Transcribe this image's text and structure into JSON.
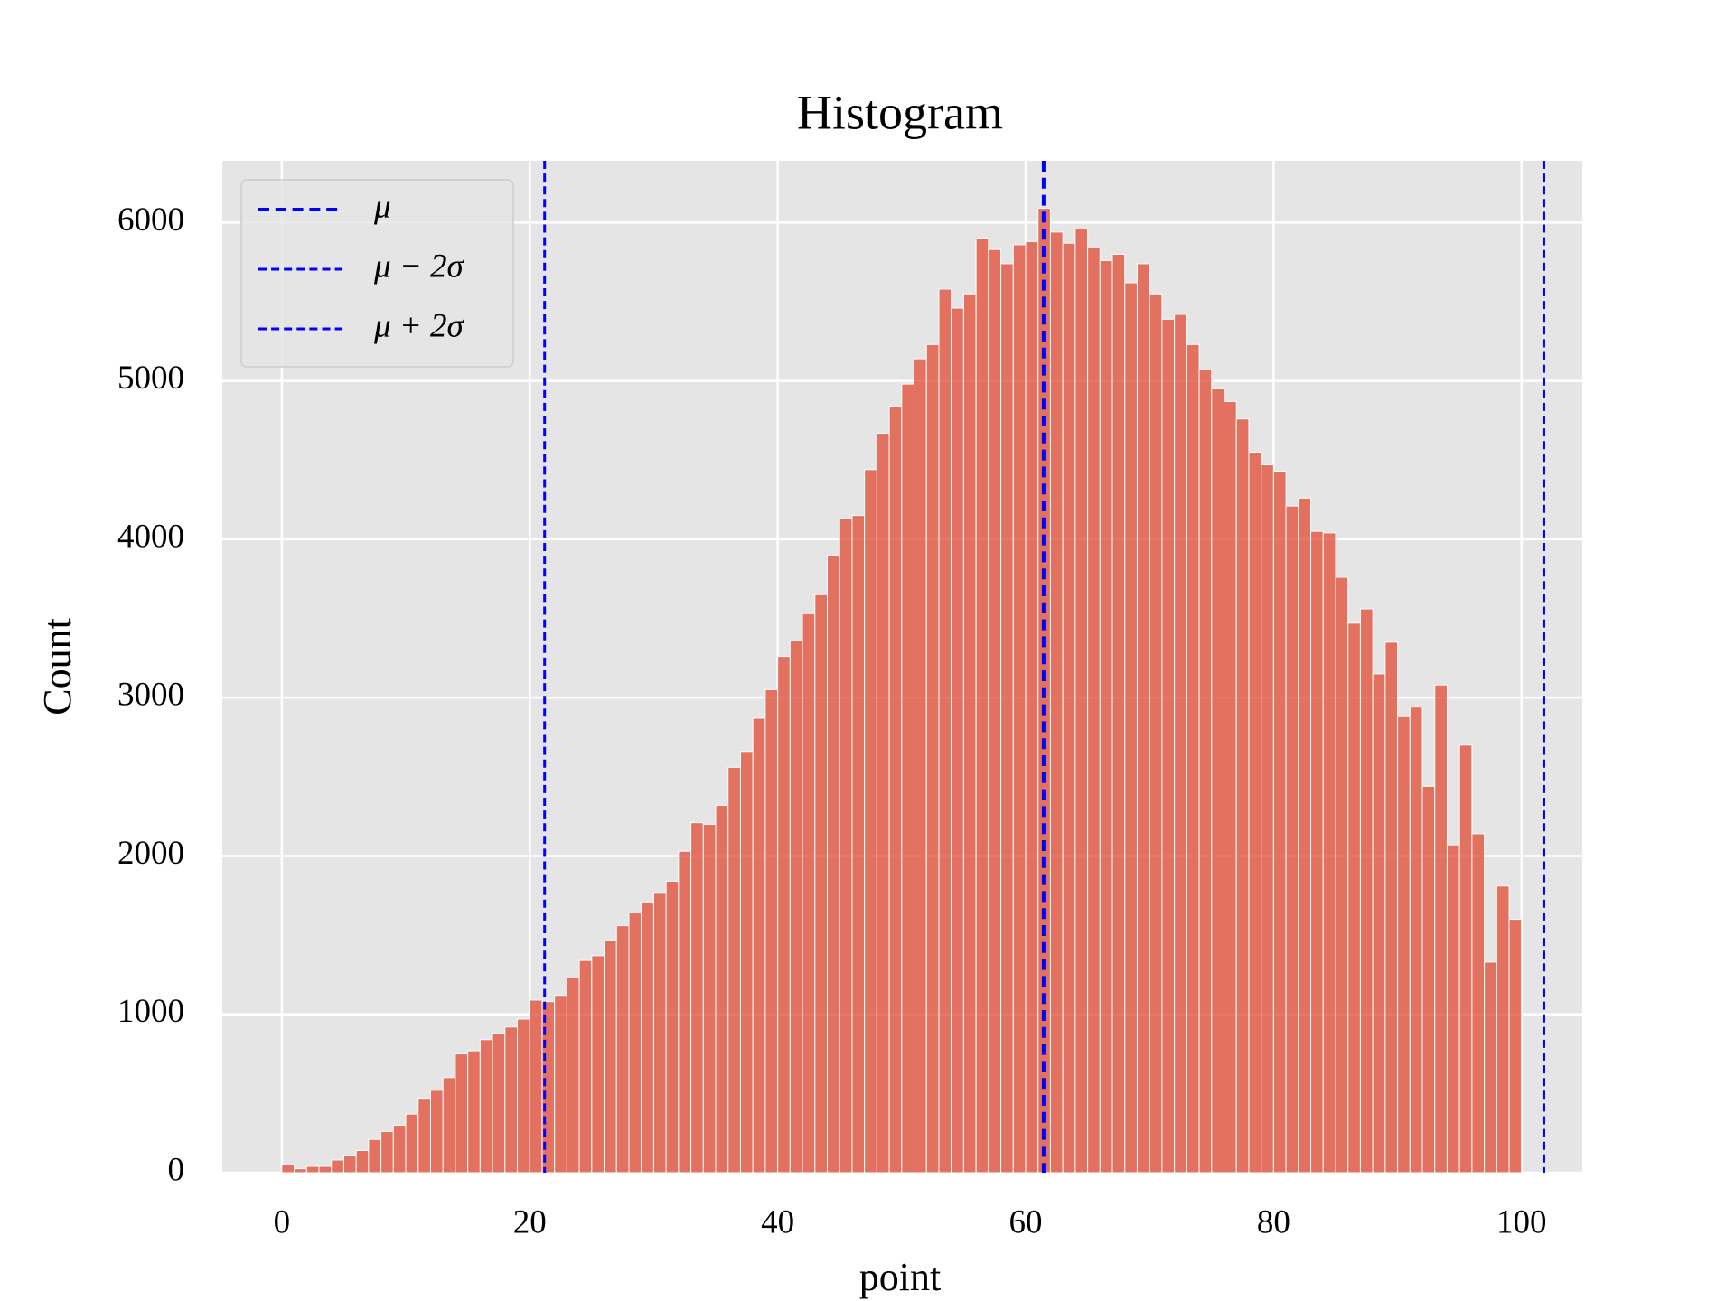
{
  "chart_data": {
    "type": "histogram",
    "title": "Histogram",
    "xlabel": "point",
    "ylabel": "Count",
    "bins": [
      0,
      1,
      2,
      3,
      4,
      5,
      6,
      7,
      8,
      9,
      10,
      11,
      12,
      13,
      14,
      15,
      16,
      17,
      18,
      19,
      20,
      21,
      22,
      23,
      24,
      25,
      26,
      27,
      28,
      29,
      30,
      31,
      32,
      33,
      34,
      35,
      36,
      37,
      38,
      39,
      40,
      41,
      42,
      43,
      44,
      45,
      46,
      47,
      48,
      49,
      50,
      51,
      52,
      53,
      54,
      55,
      56,
      57,
      58,
      59,
      60,
      61,
      62,
      63,
      64,
      65,
      66,
      67,
      68,
      69,
      70,
      71,
      72,
      73,
      74,
      75,
      76,
      77,
      78,
      79,
      80,
      81,
      82,
      83,
      84,
      85,
      86,
      87,
      88,
      89,
      90,
      91,
      92,
      93,
      94,
      95,
      96,
      97,
      98,
      99,
      100
    ],
    "counts": [
      50,
      25,
      40,
      40,
      80,
      110,
      140,
      210,
      260,
      300,
      370,
      470,
      520,
      600,
      750,
      770,
      840,
      880,
      920,
      970,
      1090,
      1080,
      1120,
      1230,
      1340,
      1370,
      1470,
      1560,
      1640,
      1710,
      1770,
      1840,
      2030,
      2210,
      2200,
      2320,
      2560,
      2660,
      2870,
      3050,
      3260,
      3360,
      3530,
      3650,
      3900,
      4130,
      4150,
      4440,
      4670,
      4840,
      4980,
      5140,
      5230,
      5580,
      5460,
      5550,
      5900,
      5830,
      5740,
      5860,
      5880,
      6090,
      5940,
      5870,
      5960,
      5840,
      5760,
      5800,
      5620,
      5740,
      5550,
      5390,
      5420,
      5230,
      5070,
      4950,
      4870,
      4760,
      4550,
      4470,
      4430,
      4210,
      4260,
      4050,
      4040,
      3760,
      3470,
      3560,
      3150,
      3350,
      2880,
      2940,
      2440,
      3080,
      2070,
      2700,
      2140,
      1330,
      1810,
      1600
    ],
    "color": "#E24A33",
    "lines": [
      {
        "name": "μ",
        "x": 61.45,
        "color": "#0000ff",
        "width": 4
      },
      {
        "name": "μ − 2σ",
        "x": 21.2,
        "color": "#0000ff",
        "width": 3
      },
      {
        "name": "μ + 2σ",
        "x": 101.8,
        "color": "#0000ff",
        "width": 3
      }
    ],
    "xlim": [
      -4.8,
      104.9
    ],
    "ylim": [
      0,
      6390
    ],
    "xticks": [
      0,
      20,
      40,
      60,
      80,
      100
    ],
    "yticks": [
      0,
      1000,
      2000,
      3000,
      4000,
      5000,
      6000
    ],
    "grid": true,
    "legend": "upper left"
  }
}
